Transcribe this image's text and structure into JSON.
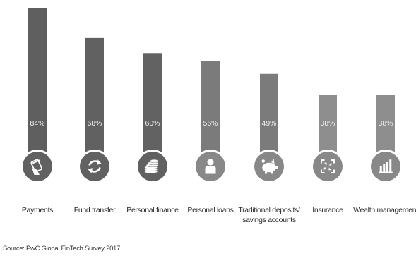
{
  "chart_data": {
    "type": "bar",
    "categories": [
      "Payments",
      "Fund transfer",
      "Personal finance",
      "Personal loans",
      "Traditional deposits/ savings accounts",
      "Insurance",
      "Wealth management"
    ],
    "values": [
      84,
      68,
      60,
      56,
      49,
      38,
      38
    ],
    "value_labels": [
      "84%",
      "68%",
      "60%",
      "56%",
      "49%",
      "38%",
      "38%"
    ],
    "icons": [
      "credit-card-icon",
      "transfer-arrows-icon",
      "coin-stack-icon",
      "person-icon",
      "piggy-bank-icon",
      "umbrella-shield-icon",
      "bar-chart-icon"
    ],
    "ylim": [
      0,
      100
    ],
    "source": "Source: PwC Global FinTech Survey 2017",
    "colors": {
      "bars": [
        "#5f5f5f",
        "#616161",
        "#626262",
        "#7b7b7b",
        "#7b7b7b",
        "#8e8e8e",
        "#8e8e8e"
      ],
      "circles": [
        "#616161",
        "#616161",
        "#616161",
        "#888888",
        "#888888",
        "#888888",
        "#888888"
      ],
      "label_text": "#f0f0f0",
      "icon": "#ffffff"
    }
  }
}
